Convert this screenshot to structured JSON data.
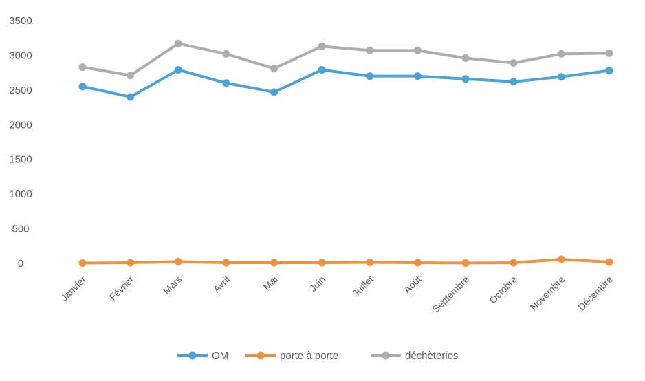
{
  "chart_data": {
    "type": "line",
    "categories": [
      "Janvier",
      "Février",
      "Mars",
      "Avril",
      "Mai",
      "Juin",
      "Juillet",
      "Août",
      "Septembre",
      "Octobre",
      "Novembre",
      "Décembre"
    ],
    "series": [
      {
        "name": "OM",
        "color": "#4aa3d8",
        "values": [
          2550,
          2400,
          2790,
          2600,
          2470,
          2790,
          2700,
          2700,
          2660,
          2620,
          2690,
          2780
        ]
      },
      {
        "name": "porte à porte",
        "color": "#f0913c",
        "values": [
          5,
          10,
          25,
          10,
          10,
          10,
          15,
          10,
          5,
          10,
          60,
          20
        ]
      },
      {
        "name": "déchèteries",
        "color": "#adadad",
        "values": [
          2830,
          2710,
          3170,
          3020,
          2810,
          3130,
          3070,
          3070,
          2960,
          2890,
          3020,
          3030
        ]
      }
    ],
    "yticks": [
      "3500",
      "3000",
      "2500",
      "2000",
      "1500",
      "1000",
      "500",
      "0"
    ],
    "ylim": [
      0,
      3500
    ],
    "title": "",
    "xlabel": "",
    "ylabel": "",
    "grid": false,
    "legend_position": "bottom"
  }
}
